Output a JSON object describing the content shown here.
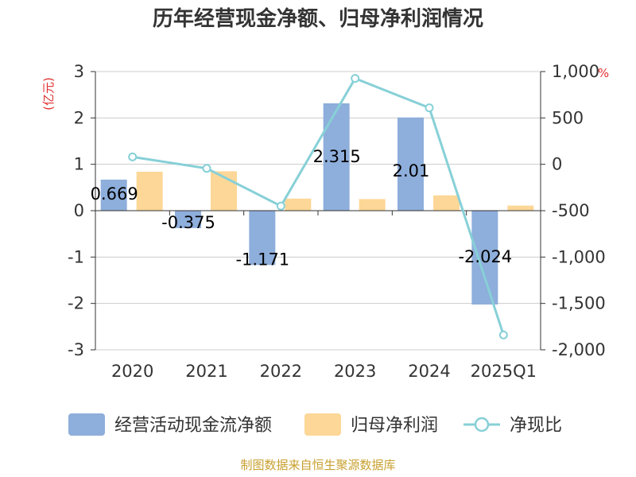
{
  "chart_data": {
    "type": "bar",
    "title": "历年经营现金净额、归母净利润情况",
    "categories": [
      "2020",
      "2021",
      "2022",
      "2023",
      "2024",
      "2025Q1"
    ],
    "series": [
      {
        "name": "经营活动现金流净额",
        "type": "bar",
        "axis": "left",
        "color": "#8eaedb",
        "values": [
          0.669,
          -0.375,
          -1.171,
          2.315,
          2.01,
          -2.024
        ],
        "labels": [
          "0.669",
          "-0.375",
          "-1.171",
          "2.315",
          "2.01",
          "-2.024"
        ]
      },
      {
        "name": "归母净利润",
        "type": "bar",
        "axis": "left",
        "color": "#fdd797",
        "values": [
          0.84,
          0.85,
          0.26,
          0.25,
          0.33,
          0.11
        ]
      },
      {
        "name": "净现比",
        "type": "line",
        "axis": "right",
        "color": "#87d0d7",
        "values": [
          80,
          -44,
          -450,
          926,
          609,
          -1840
        ]
      }
    ],
    "left_axis": {
      "unit": "(亿元)",
      "min": -3,
      "max": 3,
      "ticks": [
        {
          "v": 3,
          "label": "3"
        },
        {
          "v": 2,
          "label": "2"
        },
        {
          "v": 1,
          "label": "1"
        },
        {
          "v": 0,
          "label": "0"
        },
        {
          "v": -1,
          "label": "-1"
        },
        {
          "v": -2,
          "label": "-2"
        },
        {
          "v": -3,
          "label": "-3"
        }
      ]
    },
    "right_axis": {
      "unit": "%",
      "min": -2000,
      "max": 1000,
      "ticks": [
        {
          "v": 1000,
          "label": "1,000"
        },
        {
          "v": 500,
          "label": "500"
        },
        {
          "v": 0,
          "label": "0"
        },
        {
          "v": -500,
          "label": "-500"
        },
        {
          "v": -1000,
          "label": "-1,000"
        },
        {
          "v": -1500,
          "label": "-1,500"
        },
        {
          "v": -2000,
          "label": "-2,000"
        }
      ]
    },
    "grid": true,
    "legend_position": "bottom",
    "source": "制图数据来自恒生聚源数据库"
  }
}
